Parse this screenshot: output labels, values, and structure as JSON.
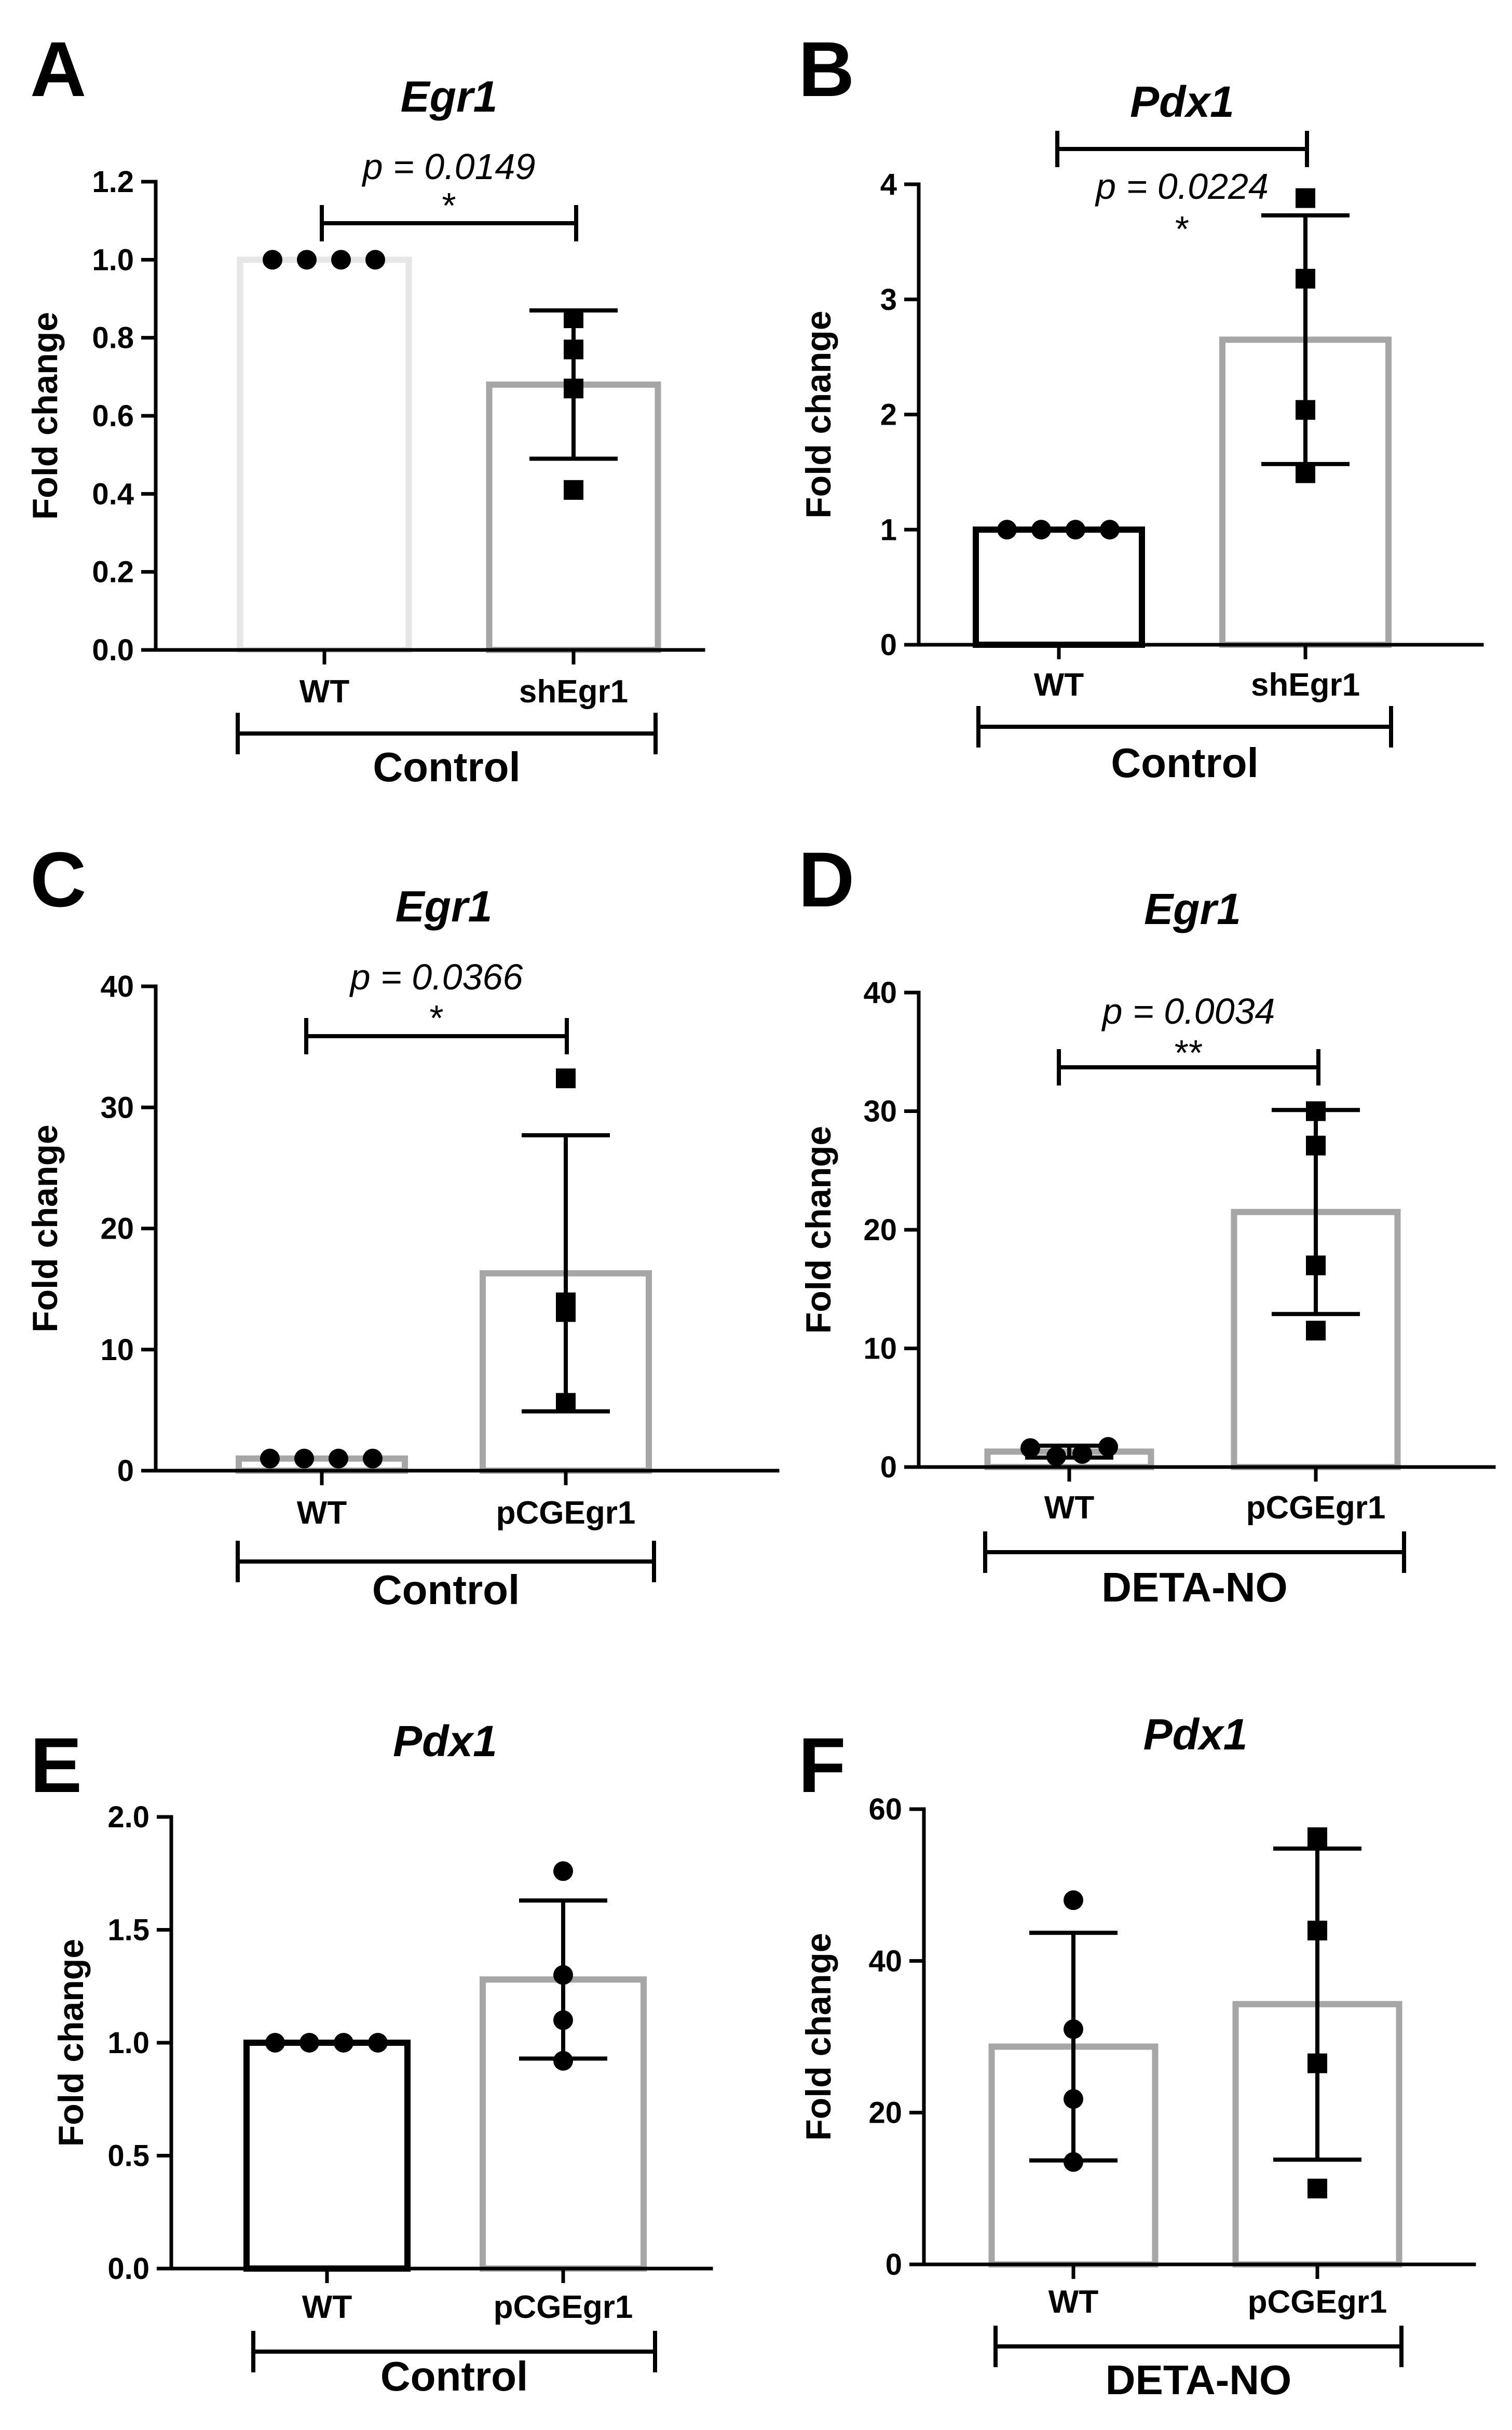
{
  "figure": {
    "colors": {
      "axis": "#000000",
      "bar_black": "#000000",
      "bar_gray": "#a6a6a6",
      "bar_light": "#e6e6e6",
      "marker": "#000000"
    }
  },
  "chart_data": [
    {
      "panel": "A",
      "type": "bar",
      "title": "Egr1",
      "ylabel": "Fold change",
      "ylim": [
        0,
        1.2
      ],
      "yticks": [
        "0.0",
        "0.2",
        "0.4",
        "0.6",
        "0.8",
        "1.0",
        "1.2"
      ],
      "ytick_values": [
        0,
        0.2,
        0.4,
        0.6,
        0.8,
        1.0,
        1.2
      ],
      "categories": [
        "WT",
        "shEgr1"
      ],
      "group_label": "Control",
      "values": [
        1.0,
        0.68
      ],
      "sd": [
        0,
        0.19
      ],
      "points": [
        [
          1.0,
          1.0,
          1.0,
          1.0
        ],
        [
          0.85,
          0.77,
          0.67,
          0.41
        ]
      ],
      "bar_colors": [
        "#e6e6e6",
        "#a6a6a6"
      ],
      "markers": [
        "circle",
        "square"
      ],
      "pvalue": "p = 0.0149",
      "significance": "*"
    },
    {
      "panel": "B",
      "type": "bar",
      "title": "Pdx1",
      "ylabel": "Fold change",
      "ylim": [
        0,
        4
      ],
      "yticks": [
        "0",
        "1",
        "2",
        "3",
        "4"
      ],
      "ytick_values": [
        0,
        1,
        2,
        3,
        4
      ],
      "categories": [
        "WT",
        "shEgr1"
      ],
      "group_label": "Control",
      "values": [
        1.0,
        2.65
      ],
      "sd": [
        0,
        1.08
      ],
      "points": [
        [
          1.0,
          1.0,
          1.0,
          1.0
        ],
        [
          3.88,
          3.18,
          2.04,
          1.49
        ]
      ],
      "bar_colors": [
        "#000000",
        "#a6a6a6"
      ],
      "markers": [
        "circle",
        "square"
      ],
      "pvalue": "p = 0.0224",
      "significance": "*"
    },
    {
      "panel": "C",
      "type": "bar",
      "title": "Egr1",
      "ylabel": "Fold change",
      "ylim": [
        0,
        40
      ],
      "yticks": [
        "0",
        "10",
        "20",
        "30",
        "40"
      ],
      "ytick_values": [
        0,
        10,
        20,
        30,
        40
      ],
      "categories": [
        "WT",
        "pCGEgr1"
      ],
      "group_label": "Control",
      "values": [
        1.0,
        16.3
      ],
      "sd": [
        0,
        11.4
      ],
      "points": [
        [
          1.0,
          1.0,
          1.0,
          1.0
        ],
        [
          32.4,
          13.9,
          13.1,
          5.6
        ]
      ],
      "bar_colors": [
        "#a6a6a6",
        "#a6a6a6"
      ],
      "markers": [
        "circle",
        "square"
      ],
      "pvalue": "p = 0.0366",
      "significance": "*"
    },
    {
      "panel": "D",
      "type": "bar",
      "title": "Egr1",
      "ylabel": "Fold change",
      "ylim": [
        0,
        40
      ],
      "yticks": [
        "0",
        "10",
        "20",
        "30",
        "40"
      ],
      "ytick_values": [
        0,
        10,
        20,
        30,
        40
      ],
      "categories": [
        "WT",
        "pCGEgr1"
      ],
      "group_label": "DETA-NO",
      "values": [
        1.3,
        21.5
      ],
      "sd": [
        0.5,
        8.6
      ],
      "points": [
        [
          1.6,
          0.9,
          1.1,
          1.7
        ],
        [
          30.0,
          27.1,
          17.0,
          11.5
        ]
      ],
      "bar_colors": [
        "#a6a6a6",
        "#a6a6a6"
      ],
      "markers": [
        "circle",
        "square"
      ],
      "pvalue": "p = 0.0034",
      "significance": "**"
    },
    {
      "panel": "E",
      "type": "bar",
      "title": "Pdx1",
      "ylabel": "Fold change",
      "ylim": [
        0,
        2.0
      ],
      "yticks": [
        "0.0",
        "0.5",
        "1.0",
        "1.5",
        "2.0"
      ],
      "ytick_values": [
        0,
        0.5,
        1.0,
        1.5,
        2.0
      ],
      "categories": [
        "WT",
        "pCGEgr1"
      ],
      "group_label": "Control",
      "values": [
        1.0,
        1.28
      ],
      "sd": [
        0,
        0.35
      ],
      "points": [
        [
          1.0,
          1.0,
          1.0,
          1.0
        ],
        [
          1.76,
          1.3,
          1.1,
          0.92
        ]
      ],
      "bar_colors": [
        "#000000",
        "#a6a6a6"
      ],
      "markers": [
        "circle",
        "circle"
      ],
      "pvalue": "",
      "significance": ""
    },
    {
      "panel": "F",
      "type": "bar",
      "title": "Pdx1",
      "ylabel": "Fold change",
      "ylim": [
        0,
        60
      ],
      "yticks": [
        "0",
        "20",
        "40",
        "60"
      ],
      "ytick_values": [
        0,
        20,
        40,
        60
      ],
      "categories": [
        "WT",
        "pCGEgr1"
      ],
      "group_label": "DETA-NO",
      "values": [
        28.7,
        34.3
      ],
      "sd": [
        15.0,
        20.5
      ],
      "points": [
        [
          48.0,
          31.0,
          21.8,
          13.5
        ],
        [
          56.3,
          44.0,
          26.5,
          10.0
        ]
      ],
      "bar_colors": [
        "#a6a6a6",
        "#a6a6a6"
      ],
      "markers": [
        "circle",
        "square"
      ],
      "pvalue": "",
      "significance": ""
    }
  ]
}
